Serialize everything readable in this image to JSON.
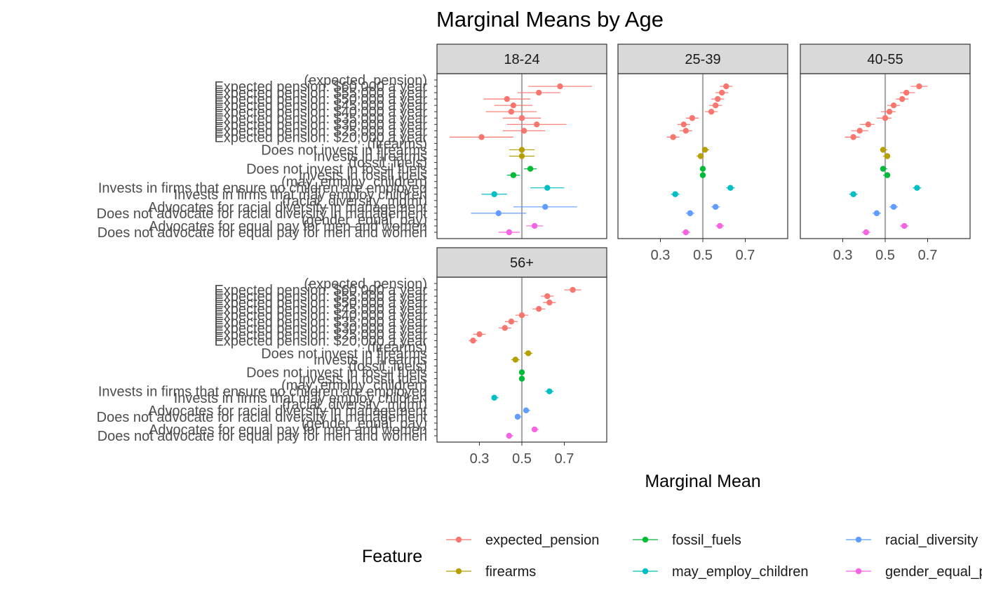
{
  "chart_data": {
    "type": "scatter",
    "title": "Marginal Means by Age",
    "xlabel": "Marginal Mean",
    "ylabel": "",
    "xlim": [
      0.1,
      0.9
    ],
    "x_ticks": [
      0.3,
      0.5,
      0.7
    ],
    "x_tick_labels": [
      "0.3",
      "0.5",
      "0.7"
    ],
    "reference_line": 0.5,
    "grid": false,
    "legend_position": "bottom",
    "legend_title": "Feature",
    "legend": [
      {
        "name": "expected_pension",
        "color": "#F8766D"
      },
      {
        "name": "firearms",
        "color": "#B79F00"
      },
      {
        "name": "fossil_fuels",
        "color": "#00BA38"
      },
      {
        "name": "may_employ_children",
        "color": "#00BFC4"
      },
      {
        "name": "racial_diversity",
        "color": "#619CFF"
      },
      {
        "name": "gender_equal_pay",
        "color": "#F564E3"
      }
    ],
    "y_labels": [
      "(expected_pension)",
      "Expected pension: $60,000 a year",
      "Expected pension: $55,000 a year",
      "Expected pension: $50,000 a year",
      "Expected pension: $45,000 a year",
      "Expected pension: $40,000 a year",
      "Expected pension: $35,000 a year",
      "Expected pension: $30,000 a year",
      "Expected pension: $25,000 a year",
      "Expected pension: $20,000 a year",
      "(firearms)",
      "Does not invest in firearms",
      "Invests in firearms",
      "(fossil_fuels)",
      "Does not invest in fossil fuels",
      "Invests in fossil fuels",
      "(may_employ_children)",
      "Invests in firms that ensure no children are employed",
      "Invests in firms that may employ children",
      "(racial_diversity_mgmt)",
      "Advocates for racial diversity in management",
      "Does not advocate for racial diversity in management",
      "(gender_equal_pay)",
      "Advocates for equal pay for men and women",
      "Does not advocate for equal pay for men and women"
    ],
    "row_feature": [
      null,
      "expected_pension",
      "expected_pension",
      "expected_pension",
      "expected_pension",
      "expected_pension",
      "expected_pension",
      "expected_pension",
      "expected_pension",
      "expected_pension",
      null,
      "firearms",
      "firearms",
      null,
      "fossil_fuels",
      "fossil_fuels",
      null,
      "may_employ_children",
      "may_employ_children",
      null,
      "racial_diversity",
      "racial_diversity",
      null,
      "gender_equal_pay",
      "gender_equal_pay"
    ],
    "panels": [
      {
        "label": "18-24",
        "estimates": [
          null,
          0.68,
          0.58,
          0.43,
          0.46,
          0.45,
          0.5,
          0.57,
          0.51,
          0.31,
          null,
          0.5,
          0.5,
          null,
          0.54,
          0.46,
          null,
          0.62,
          0.37,
          null,
          0.61,
          0.39,
          null,
          0.56,
          0.44
        ],
        "lower": [
          null,
          0.53,
          0.48,
          0.32,
          0.37,
          0.33,
          0.41,
          0.43,
          0.41,
          0.16,
          null,
          0.44,
          0.44,
          null,
          0.51,
          0.43,
          null,
          0.54,
          0.31,
          null,
          0.46,
          0.26,
          null,
          0.52,
          0.39
        ],
        "upper": [
          null,
          0.83,
          0.68,
          0.54,
          0.55,
          0.57,
          0.59,
          0.71,
          0.61,
          0.46,
          null,
          0.56,
          0.56,
          null,
          0.57,
          0.49,
          null,
          0.7,
          0.43,
          null,
          0.76,
          0.52,
          null,
          0.6,
          0.49
        ]
      },
      {
        "label": "25-39",
        "estimates": [
          null,
          0.61,
          0.59,
          0.57,
          0.56,
          0.54,
          0.45,
          0.41,
          0.42,
          0.36,
          null,
          0.51,
          0.49,
          null,
          0.5,
          0.5,
          null,
          0.63,
          0.37,
          null,
          0.56,
          0.44,
          null,
          0.58,
          0.42
        ],
        "lower": [
          null,
          0.58,
          0.56,
          0.54,
          0.53,
          0.51,
          0.42,
          0.38,
          0.39,
          0.33,
          null,
          0.5,
          0.47,
          null,
          0.5,
          0.5,
          null,
          0.61,
          0.35,
          null,
          0.54,
          0.42,
          null,
          0.56,
          0.4
        ],
        "upper": [
          null,
          0.64,
          0.62,
          0.6,
          0.59,
          0.57,
          0.48,
          0.44,
          0.45,
          0.39,
          null,
          0.53,
          0.5,
          null,
          0.5,
          0.5,
          null,
          0.65,
          0.39,
          null,
          0.58,
          0.46,
          null,
          0.6,
          0.44
        ]
      },
      {
        "label": "40-55",
        "estimates": [
          null,
          0.66,
          0.6,
          0.58,
          0.54,
          0.52,
          0.5,
          0.42,
          0.38,
          0.35,
          null,
          0.49,
          0.51,
          null,
          0.49,
          0.51,
          null,
          0.65,
          0.35,
          null,
          0.54,
          0.46,
          null,
          0.59,
          0.41
        ],
        "lower": [
          null,
          0.62,
          0.57,
          0.55,
          0.51,
          0.48,
          0.46,
          0.38,
          0.34,
          0.31,
          null,
          0.48,
          0.49,
          null,
          0.48,
          0.49,
          null,
          0.63,
          0.33,
          null,
          0.52,
          0.44,
          null,
          0.57,
          0.39
        ],
        "upper": [
          null,
          0.7,
          0.64,
          0.61,
          0.57,
          0.55,
          0.53,
          0.45,
          0.42,
          0.38,
          null,
          0.51,
          0.52,
          null,
          0.51,
          0.52,
          null,
          0.67,
          0.37,
          null,
          0.56,
          0.48,
          null,
          0.61,
          0.43
        ]
      },
      {
        "label": "56+",
        "estimates": [
          null,
          0.74,
          0.62,
          0.63,
          0.58,
          0.5,
          0.45,
          0.42,
          0.3,
          0.27,
          null,
          0.53,
          0.47,
          null,
          0.5,
          0.5,
          null,
          0.63,
          0.37,
          null,
          0.52,
          0.48,
          null,
          0.56,
          0.44
        ],
        "lower": [
          null,
          0.7,
          0.59,
          0.6,
          0.55,
          0.47,
          0.42,
          0.39,
          0.27,
          0.25,
          null,
          0.51,
          0.45,
          null,
          0.49,
          0.49,
          null,
          0.61,
          0.36,
          null,
          0.51,
          0.47,
          null,
          0.55,
          0.43
        ],
        "upper": [
          null,
          0.78,
          0.65,
          0.66,
          0.61,
          0.53,
          0.48,
          0.45,
          0.33,
          0.29,
          null,
          0.55,
          0.49,
          null,
          0.51,
          0.51,
          null,
          0.65,
          0.39,
          null,
          0.54,
          0.5,
          null,
          0.58,
          0.46
        ]
      }
    ]
  }
}
